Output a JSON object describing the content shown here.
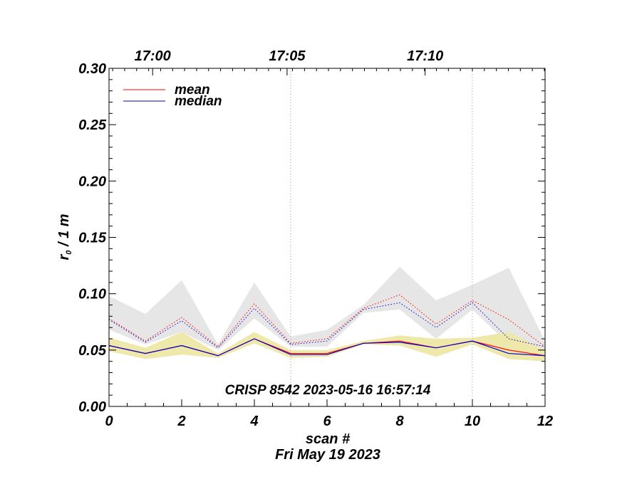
{
  "chart_data": {
    "type": "line",
    "title": "CRISP 8542 2023-05-16 16:57:14",
    "xlabel": "scan #",
    "date_label": "Fri May 19 2023",
    "ylabel_main": "r",
    "ylabel_sub": "0",
    "ylabel_rest": " / 1 m",
    "xlim": [
      0,
      12
    ],
    "ylim": [
      0,
      0.3
    ],
    "x_ticks": [
      0,
      2,
      4,
      6,
      8,
      10,
      12
    ],
    "x_tick_labels": [
      "0",
      "2",
      "4",
      "6",
      "8",
      "10",
      "12"
    ],
    "y_ticks": [
      0,
      0.05,
      0.1,
      0.15,
      0.2,
      0.25,
      0.3
    ],
    "y_tick_labels": [
      "0.00",
      "0.05",
      "0.10",
      "0.15",
      "0.20",
      "0.25",
      "0.30"
    ],
    "top_ticks": [
      {
        "x": 1.2,
        "label": "17:00"
      },
      {
        "x": 4.9,
        "label": "17:05"
      },
      {
        "x": 8.7,
        "label": "17:10"
      }
    ],
    "vlines": [
      5,
      10
    ],
    "x": [
      0,
      1,
      2,
      3,
      4,
      5,
      6,
      7,
      8,
      9,
      10,
      11,
      12
    ],
    "series": [
      {
        "name": "mean",
        "color": "#ff0000",
        "style": "solid",
        "in_legend": true,
        "values": [
          0.054,
          0.047,
          0.054,
          0.045,
          0.06,
          0.047,
          0.047,
          0.056,
          0.058,
          0.052,
          0.058,
          0.05,
          0.045
        ]
      },
      {
        "name": "median",
        "color": "#0000cc",
        "style": "solid",
        "in_legend": true,
        "values": [
          0.054,
          0.047,
          0.054,
          0.045,
          0.06,
          0.046,
          0.046,
          0.056,
          0.057,
          0.052,
          0.058,
          0.047,
          0.045
        ]
      },
      {
        "name": "mean (dotted)",
        "color": "#ff0000",
        "style": "dotted",
        "in_legend": false,
        "values": [
          0.078,
          0.058,
          0.079,
          0.053,
          0.091,
          0.056,
          0.06,
          0.087,
          0.099,
          0.073,
          0.094,
          0.077,
          0.053
        ]
      },
      {
        "name": "median (dotted)",
        "color": "#0000cc",
        "style": "dotted",
        "in_legend": false,
        "values": [
          0.077,
          0.057,
          0.076,
          0.052,
          0.087,
          0.055,
          0.058,
          0.086,
          0.092,
          0.07,
          0.092,
          0.06,
          0.053
        ]
      }
    ],
    "bands": [
      {
        "name": "upper band",
        "color": "#e6e6e6",
        "upper": [
          0.098,
          0.082,
          0.112,
          0.055,
          0.11,
          0.062,
          0.068,
          0.09,
          0.124,
          0.094,
          0.108,
          0.123,
          0.058
        ],
        "lower": [
          0.068,
          0.055,
          0.066,
          0.05,
          0.078,
          0.053,
          0.053,
          0.083,
          0.086,
          0.06,
          0.086,
          0.055,
          0.05
        ]
      },
      {
        "name": "lower band",
        "color": "#eee8aa",
        "upper": [
          0.061,
          0.052,
          0.066,
          0.047,
          0.066,
          0.05,
          0.05,
          0.058,
          0.063,
          0.06,
          0.061,
          0.066,
          0.05
        ],
        "lower": [
          0.049,
          0.042,
          0.046,
          0.043,
          0.056,
          0.043,
          0.044,
          0.055,
          0.054,
          0.044,
          0.055,
          0.042,
          0.04
        ]
      }
    ]
  }
}
